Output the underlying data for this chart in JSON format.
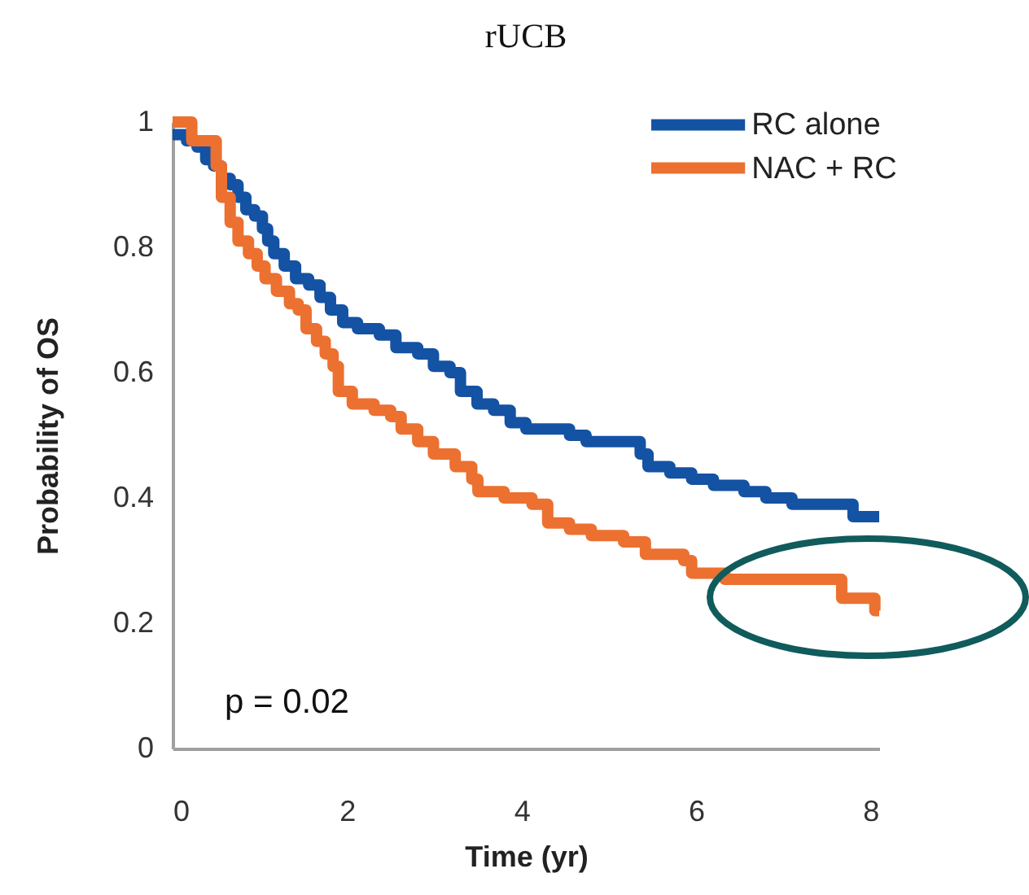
{
  "chart_data": {
    "type": "step",
    "title": "rUCB",
    "xlabel": "Time (yr)",
    "ylabel": "Probability of OS",
    "xlim": [
      0,
      8.1
    ],
    "xticks": [
      0,
      2,
      4,
      6,
      8
    ],
    "ylim": [
      0,
      1
    ],
    "yticks": [
      0,
      0.2,
      0.4,
      0.6,
      0.8,
      1
    ],
    "legend": "top right",
    "annotations": [
      "p = 0.02"
    ],
    "series": [
      {
        "name": "RC alone",
        "color": "#1452a3",
        "x": [
          0,
          0.16,
          0.28,
          0.38,
          0.47,
          0.56,
          0.66,
          0.75,
          0.84,
          0.94,
          1.03,
          1.09,
          1.16,
          1.28,
          1.41,
          1.56,
          1.69,
          1.81,
          1.95,
          2.12,
          2.37,
          2.56,
          2.81,
          2.99,
          3.18,
          3.3,
          3.49,
          3.68,
          3.87,
          4.05,
          4.55,
          4.74,
          5.36,
          5.45,
          5.7,
          5.95,
          6.2,
          6.55,
          6.8,
          7.1,
          7.8,
          8.1
        ],
        "values": [
          0.98,
          0.97,
          0.96,
          0.94,
          0.93,
          0.91,
          0.9,
          0.88,
          0.86,
          0.85,
          0.83,
          0.81,
          0.79,
          0.77,
          0.75,
          0.74,
          0.72,
          0.7,
          0.68,
          0.67,
          0.66,
          0.64,
          0.63,
          0.61,
          0.6,
          0.57,
          0.55,
          0.54,
          0.52,
          0.51,
          0.5,
          0.49,
          0.47,
          0.45,
          0.44,
          0.43,
          0.42,
          0.41,
          0.4,
          0.39,
          0.37,
          0.37
        ]
      },
      {
        "name": "NAC + RC",
        "color": "#ec7030",
        "x": [
          0,
          0.22,
          0.5,
          0.56,
          0.66,
          0.75,
          0.87,
          0.97,
          1.06,
          1.19,
          1.34,
          1.44,
          1.53,
          1.65,
          1.75,
          1.84,
          1.9,
          2.06,
          2.31,
          2.5,
          2.62,
          2.81,
          2.99,
          3.24,
          3.43,
          3.5,
          3.8,
          4.12,
          4.3,
          4.55,
          4.8,
          5.17,
          5.42,
          5.86,
          5.95,
          6.33,
          7.67,
          8.05,
          8.1
        ],
        "values": [
          1.0,
          0.97,
          0.93,
          0.88,
          0.84,
          0.81,
          0.79,
          0.77,
          0.75,
          0.73,
          0.71,
          0.7,
          0.67,
          0.65,
          0.63,
          0.61,
          0.57,
          0.55,
          0.54,
          0.53,
          0.51,
          0.49,
          0.47,
          0.45,
          0.43,
          0.41,
          0.4,
          0.39,
          0.36,
          0.35,
          0.34,
          0.33,
          0.31,
          0.3,
          0.28,
          0.27,
          0.24,
          0.22,
          0.22
        ]
      }
    ]
  }
}
